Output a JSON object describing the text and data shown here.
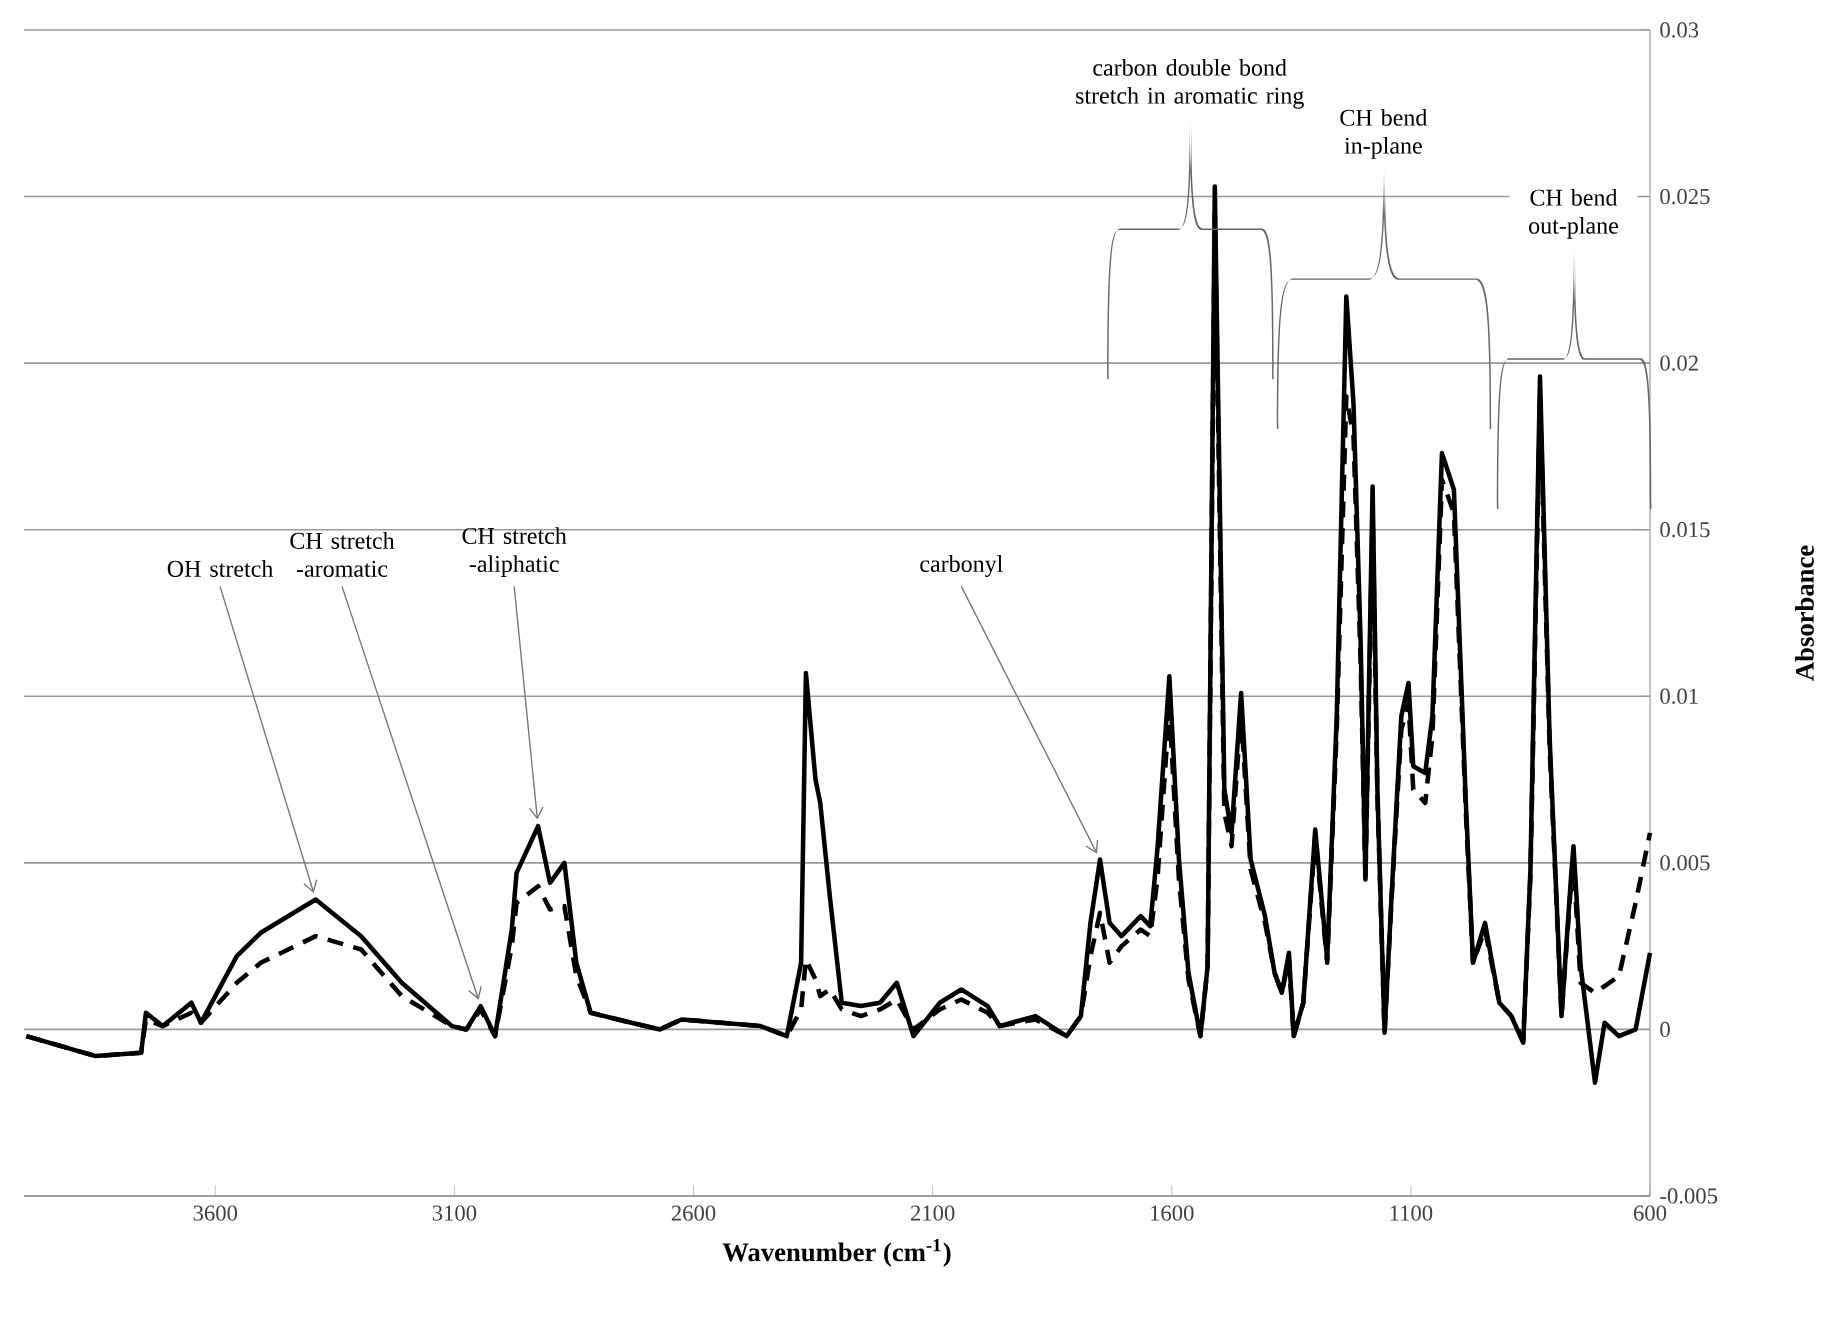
{
  "chart_data": {
    "type": "line",
    "xlabel": "Wavenumber (cm$^{-1}$)",
    "ylabel": "Absorbance",
    "x": [
      3995,
      3850,
      3755,
      3745,
      3710,
      3650,
      3630,
      3555,
      3505,
      3390,
      3295,
      3210,
      3105,
      3075,
      3045,
      3015,
      2980,
      2970,
      2925,
      2900,
      2870,
      2845,
      2815,
      2730,
      2670,
      2625,
      2460,
      2405,
      2375,
      2365,
      2345,
      2335,
      2315,
      2290,
      2250,
      2210,
      2175,
      2140,
      2085,
      2040,
      1985,
      1960,
      1885,
      1820,
      1790,
      1770,
      1750,
      1730,
      1705,
      1665,
      1645,
      1630,
      1605,
      1585,
      1565,
      1540,
      1525,
      1510,
      1490,
      1475,
      1455,
      1435,
      1405,
      1385,
      1370,
      1355,
      1345,
      1325,
      1300,
      1275,
      1255,
      1235,
      1220,
      1205,
      1195,
      1180,
      1170,
      1155,
      1140,
      1120,
      1105,
      1095,
      1070,
      1055,
      1035,
      1010,
      985,
      970,
      945,
      915,
      890,
      865,
      850,
      830,
      810,
      785,
      765,
      760,
      745,
      715,
      695,
      665,
      630,
      600
    ],
    "series": [
      {
        "color": "#000000",
        "line_style": "solid",
        "values": [
          -0.0002,
          -0.0008,
          -0.0007,
          0.0005,
          0.0001,
          0.0008,
          0.0002,
          0.0022,
          0.0029,
          0.0039,
          0.0028,
          0.0014,
          0.0001,
          0.0,
          0.0007,
          -0.0002,
          0.003,
          0.0047,
          0.0061,
          0.0044,
          0.005,
          0.002,
          0.0005,
          0.0002,
          0.0,
          0.0003,
          0.0001,
          -0.0002,
          0.002,
          0.0107,
          0.0075,
          0.0068,
          0.004,
          0.0008,
          0.0007,
          0.0008,
          0.0014,
          -0.0002,
          0.0008,
          0.0012,
          0.0007,
          0.0001,
          0.0004,
          -0.0002,
          0.0004,
          0.0032,
          0.0051,
          0.0032,
          0.0028,
          0.0034,
          0.0031,
          0.0054,
          0.0106,
          0.0051,
          0.0017,
          -0.0002,
          0.0019,
          0.0253,
          0.0072,
          0.0059,
          0.0101,
          0.0051,
          0.0034,
          0.0017,
          0.0011,
          0.0023,
          -0.0002,
          0.0008,
          0.006,
          0.0021,
          0.0094,
          0.022,
          0.0188,
          0.0116,
          0.0045,
          0.0163,
          0.0072,
          -0.0001,
          0.0041,
          0.0094,
          0.0104,
          0.0079,
          0.0077,
          0.0094,
          0.0173,
          0.0162,
          0.0068,
          0.002,
          0.0032,
          0.0008,
          0.0004,
          -0.0004,
          0.0048,
          0.0196,
          0.0088,
          0.0004,
          0.0046,
          0.0055,
          0.0019,
          -0.0016,
          0.0002,
          -0.0002,
          0.0,
          0.0023
        ]
      },
      {
        "color": "#000000",
        "line_style": "dashed",
        "values": [
          -0.0002,
          -0.0008,
          -0.0007,
          0.0003,
          0.0001,
          0.0005,
          0.0002,
          0.0014,
          0.002,
          0.0028,
          0.0024,
          0.001,
          0.0001,
          0.0,
          0.0006,
          -0.0002,
          0.0025,
          0.0038,
          0.0043,
          0.0036,
          0.0037,
          0.0016,
          0.0005,
          0.0002,
          0.0,
          0.0003,
          0.0001,
          -0.0002,
          0.0006,
          0.0021,
          0.0015,
          0.001,
          0.0012,
          0.0006,
          0.0004,
          0.0006,
          0.0009,
          0.0,
          0.0006,
          0.0009,
          0.0005,
          0.0001,
          0.0003,
          -0.0002,
          0.0004,
          0.0022,
          0.0035,
          0.002,
          0.0025,
          0.003,
          0.0028,
          0.0045,
          0.0096,
          0.0045,
          0.0015,
          -0.0002,
          0.0019,
          0.0245,
          0.0065,
          0.0055,
          0.0095,
          0.0048,
          0.0032,
          0.0017,
          0.0011,
          0.0021,
          -0.0002,
          0.0008,
          0.0058,
          0.002,
          0.009,
          0.019,
          0.0178,
          0.011,
          0.0045,
          0.0155,
          0.007,
          -0.0001,
          0.004,
          0.009,
          0.0098,
          0.0072,
          0.0068,
          0.0088,
          0.0165,
          0.0155,
          0.0065,
          0.002,
          0.003,
          0.0008,
          0.0004,
          -0.0003,
          0.0046,
          0.019,
          0.0085,
          0.0004,
          0.0044,
          0.005,
          0.0014,
          0.0011,
          0.0013,
          0.0016,
          0.0038,
          0.0059
        ]
      }
    ],
    "xlim": [
      4000,
      600
    ],
    "ylim": [
      -0.005,
      0.03
    ],
    "xticks": [
      3600,
      3100,
      2600,
      2100,
      1600,
      1100,
      600
    ],
    "yticks": [
      -0.005,
      0,
      0.005,
      0.01,
      0.015,
      0.02,
      0.025,
      0.03
    ],
    "grid": "y",
    "annotations": [
      {
        "text": "OH stretch",
        "x": 3390,
        "y": 0.0039
      },
      {
        "text": "CH stretch -aromatic",
        "x": 3045,
        "y": 0.0007
      },
      {
        "text": "CH stretch -aliphatic",
        "x": 2925,
        "y": 0.0061
      },
      {
        "text": "carbonyl",
        "x": 1750,
        "y": 0.0051
      },
      "carbon double bond stretch in aromatic ring",
      "CH bend in-plane",
      "CH bend out-plane"
    ]
  }
}
